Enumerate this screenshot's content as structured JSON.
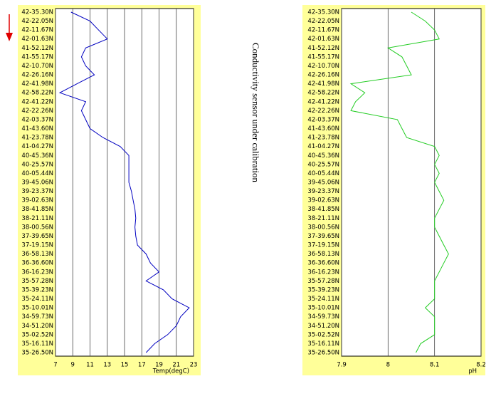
{
  "annotation": "Conductivity sensor under calibration",
  "chart_data": [
    {
      "type": "line",
      "orientation": "horizontal",
      "xlabel": "Temp(degC)",
      "color": "#0000c0",
      "grid": true,
      "categories": [
        "42-35.30N",
        "42-22.05N",
        "42-11.67N",
        "42-01.63N",
        "41-52.12N",
        "41-55.17N",
        "42-10.70N",
        "42-26.16N",
        "42-41.98N",
        "42-58.22N",
        "42-41.22N",
        "42-22.26N",
        "42-03.37N",
        "41-43.60N",
        "41-23.78N",
        "41-04.27N",
        "40-45.36N",
        "40-25.57N",
        "40-05.44N",
        "39-45.06N",
        "39-23.37N",
        "39-02.63N",
        "38-41.85N",
        "38-21.11N",
        "38-00.56N",
        "37-39.65N",
        "37-19.15N",
        "36-58.13N",
        "36-36.60N",
        "36-16.23N",
        "35-57.28N",
        "35-39.23N",
        "35-24.11N",
        "35-10.01N",
        "34-59.73N",
        "34-51.20N",
        "35-02.52N",
        "35-16.11N",
        "35-26.50N"
      ],
      "values": [
        8.8,
        11,
        12,
        13,
        10.5,
        10,
        10.5,
        11.5,
        9.5,
        7.5,
        10.5,
        10,
        10.5,
        11,
        12.5,
        14.5,
        15.5,
        15.5,
        15.5,
        15.5,
        15.8,
        16,
        16.2,
        16.3,
        16.2,
        16.3,
        16.5,
        17.5,
        18,
        19,
        17.5,
        19.5,
        20.5,
        22.5,
        21.5,
        21,
        20,
        18.5,
        17.5
      ],
      "xlim": [
        7,
        23
      ],
      "xticks": [
        7,
        9,
        11,
        13,
        15,
        17,
        19,
        21,
        23
      ]
    },
    {
      "type": "line",
      "orientation": "horizontal",
      "xlabel": "pH",
      "color": "#22cc22",
      "grid": true,
      "categories": [
        "42-35.30N",
        "42-22.05N",
        "42-11.67N",
        "42-01.63N",
        "41-52.12N",
        "41-55.17N",
        "42-10.70N",
        "42-26.16N",
        "42-41.98N",
        "42-58.22N",
        "42-41.22N",
        "42-22.26N",
        "42-03.37N",
        "41-43.60N",
        "41-23.78N",
        "41-04.27N",
        "40-45.36N",
        "40-25.57N",
        "40-05.44N",
        "39-45.06N",
        "39-23.37N",
        "39-02.63N",
        "38-41.85N",
        "38-21.11N",
        "38-00.56N",
        "37-39.65N",
        "37-19.15N",
        "36-58.13N",
        "36-36.60N",
        "36-16.23N",
        "35-57.28N",
        "35-39.23N",
        "35-24.11N",
        "35-10.01N",
        "34-59.73N",
        "34-51.20N",
        "35-02.52N",
        "35-16.11N",
        "35-26.50N"
      ],
      "values": [
        8.05,
        8.08,
        8.1,
        8.11,
        8.0,
        8.03,
        8.04,
        8.05,
        7.92,
        7.95,
        7.93,
        7.92,
        8.02,
        8.03,
        8.04,
        8.1,
        8.11,
        8.1,
        8.11,
        8.1,
        8.11,
        8.12,
        8.11,
        8.1,
        8.1,
        8.11,
        8.12,
        8.13,
        8.12,
        8.11,
        8.1,
        8.1,
        8.1,
        8.08,
        8.1,
        8.1,
        8.1,
        8.07,
        8.06
      ],
      "xlim": [
        7.9,
        8.2
      ],
      "xticks": [
        7.9,
        8,
        8.1,
        8.2
      ]
    }
  ]
}
